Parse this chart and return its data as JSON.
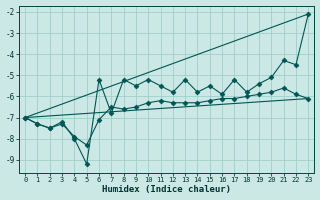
{
  "title": "",
  "xlabel": "Humidex (Indice chaleur)",
  "ylabel": "",
  "bg_color": "#cce8e4",
  "grid_color": "#9fcfca",
  "line_color": "#005555",
  "xlim": [
    -0.5,
    23.5
  ],
  "ylim": [
    -9.6,
    -1.7
  ],
  "yticks": [
    -9,
    -8,
    -7,
    -6,
    -5,
    -4,
    -3,
    -2
  ],
  "xticks": [
    0,
    1,
    2,
    3,
    4,
    5,
    6,
    7,
    8,
    9,
    10,
    11,
    12,
    13,
    14,
    15,
    16,
    17,
    18,
    19,
    20,
    21,
    22,
    23
  ],
  "series": [
    {
      "x": [
        0,
        1,
        2,
        3,
        4,
        5,
        6,
        7,
        8,
        9,
        10,
        11,
        12,
        13,
        14,
        15,
        16,
        17,
        18,
        19,
        20,
        21,
        22,
        23
      ],
      "y": [
        -7.0,
        -7.3,
        -7.5,
        -7.2,
        -8.0,
        -9.2,
        -5.2,
        -6.8,
        -5.2,
        -5.5,
        -5.2,
        -5.5,
        -5.8,
        -5.2,
        -5.8,
        -5.5,
        -5.9,
        -5.2,
        -5.8,
        -5.4,
        -5.1,
        -4.3,
        -4.5,
        -2.1
      ],
      "marker": "D",
      "markersize": 2.5
    },
    {
      "x": [
        0,
        1,
        2,
        3,
        4,
        5,
        6,
        7,
        8,
        9,
        10,
        11,
        12,
        13,
        14,
        15,
        16,
        17,
        18,
        19,
        20,
        21,
        22,
        23
      ],
      "y": [
        -7.0,
        -7.3,
        -7.5,
        -7.3,
        -7.9,
        -8.3,
        -7.1,
        -6.5,
        -6.6,
        -6.5,
        -6.3,
        -6.2,
        -6.3,
        -6.3,
        -6.3,
        -6.2,
        -6.1,
        -6.1,
        -6.0,
        -5.9,
        -5.8,
        -5.6,
        -5.9,
        -6.1
      ],
      "marker": "D",
      "markersize": 2.5
    },
    {
      "x": [
        0,
        23
      ],
      "y": [
        -7.0,
        -2.1
      ],
      "marker": null,
      "markersize": 0
    },
    {
      "x": [
        0,
        23
      ],
      "y": [
        -7.0,
        -6.1
      ],
      "marker": null,
      "markersize": 0
    }
  ]
}
